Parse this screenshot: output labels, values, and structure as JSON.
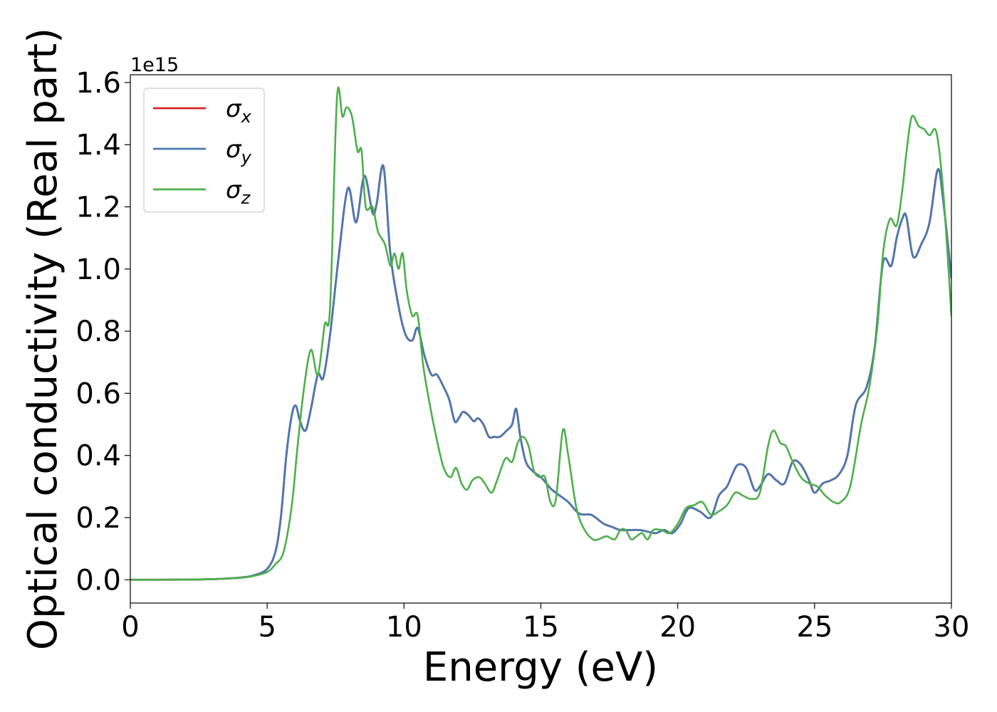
{
  "chart_data": {
    "type": "line",
    "title": "",
    "xlabel": "Energy (eV)",
    "ylabel": "Optical conductivity (Real part)",
    "y_offset_label": "1e15",
    "xlim": [
      0,
      30
    ],
    "ylim": [
      -0.075,
      1.625
    ],
    "x_ticks": [
      0,
      5,
      10,
      15,
      20,
      25,
      30
    ],
    "x_tick_labels": [
      "0",
      "5",
      "10",
      "15",
      "20",
      "25",
      "30"
    ],
    "y_ticks": [
      0.0,
      0.2,
      0.4,
      0.6,
      0.8,
      1.0,
      1.2,
      1.4,
      1.6
    ],
    "y_tick_labels": [
      "0.0",
      "0.2",
      "0.4",
      "0.6",
      "0.8",
      "1.0",
      "1.2",
      "1.4",
      "1.6"
    ],
    "grid": false,
    "legend_position": "top-left",
    "series": [
      {
        "name": "σx",
        "legend_main": "σ",
        "legend_sub": "x",
        "color": "#d62728",
        "x": [
          0,
          1,
          2,
          3,
          4,
          4.5,
          5,
          5.3,
          5.5,
          5.7,
          5.9,
          6.05,
          6.2,
          6.4,
          6.6,
          6.85,
          7.05,
          7.3,
          7.6,
          7.95,
          8.25,
          8.55,
          8.85,
          9.0,
          9.25,
          9.5,
          9.8,
          10.05,
          10.3,
          10.5,
          10.75,
          11.0,
          11.2,
          11.45,
          11.65,
          11.85,
          12.0,
          12.15,
          12.35,
          12.55,
          12.7,
          12.9,
          13.1,
          13.3,
          13.5,
          13.75,
          13.95,
          14.1,
          14.25,
          14.45,
          14.7,
          15.0,
          15.2,
          15.4,
          15.7,
          16.0,
          16.3,
          16.5,
          16.8,
          17.0,
          17.3,
          17.6,
          17.9,
          18.2,
          18.6,
          18.9,
          19.2,
          19.5,
          19.8,
          20.1,
          20.4,
          20.8,
          21.2,
          21.5,
          21.8,
          22.0,
          22.2,
          22.5,
          22.8,
          23.0,
          23.3,
          23.6,
          23.9,
          24.2,
          24.5,
          24.8,
          25.0,
          25.3,
          25.6,
          25.9,
          26.2,
          26.5,
          26.9,
          27.2,
          27.5,
          27.8,
          28.0,
          28.2,
          28.35,
          28.6,
          28.9,
          29.2,
          29.5,
          29.7,
          30.0
        ],
        "y": [
          0.0,
          0.0,
          0.0005,
          0.002,
          0.007,
          0.014,
          0.035,
          0.09,
          0.2,
          0.4,
          0.53,
          0.56,
          0.51,
          0.48,
          0.55,
          0.66,
          0.65,
          0.79,
          1.03,
          1.26,
          1.15,
          1.3,
          1.18,
          1.21,
          1.33,
          1.05,
          0.88,
          0.79,
          0.77,
          0.81,
          0.72,
          0.66,
          0.66,
          0.62,
          0.58,
          0.51,
          0.52,
          0.54,
          0.53,
          0.51,
          0.52,
          0.5,
          0.46,
          0.46,
          0.46,
          0.48,
          0.5,
          0.55,
          0.46,
          0.38,
          0.35,
          0.33,
          0.31,
          0.29,
          0.27,
          0.25,
          0.22,
          0.21,
          0.21,
          0.2,
          0.18,
          0.17,
          0.16,
          0.16,
          0.16,
          0.155,
          0.15,
          0.16,
          0.15,
          0.18,
          0.23,
          0.22,
          0.2,
          0.27,
          0.3,
          0.34,
          0.37,
          0.36,
          0.29,
          0.3,
          0.34,
          0.32,
          0.31,
          0.38,
          0.37,
          0.32,
          0.28,
          0.31,
          0.32,
          0.34,
          0.4,
          0.56,
          0.62,
          0.75,
          1.02,
          1.01,
          1.1,
          1.16,
          1.17,
          1.04,
          1.08,
          1.15,
          1.32,
          1.22,
          0.97
        ]
      },
      {
        "name": "σy",
        "legend_main": "σ",
        "legend_sub": "y",
        "color": "#4a78b0",
        "x": [
          0,
          1,
          2,
          3,
          4,
          4.5,
          5,
          5.3,
          5.5,
          5.7,
          5.9,
          6.05,
          6.2,
          6.4,
          6.6,
          6.85,
          7.05,
          7.3,
          7.6,
          7.95,
          8.25,
          8.55,
          8.85,
          9.0,
          9.25,
          9.5,
          9.8,
          10.05,
          10.3,
          10.5,
          10.75,
          11.0,
          11.2,
          11.45,
          11.65,
          11.85,
          12.0,
          12.15,
          12.35,
          12.55,
          12.7,
          12.9,
          13.1,
          13.3,
          13.5,
          13.75,
          13.95,
          14.1,
          14.25,
          14.45,
          14.7,
          15.0,
          15.2,
          15.4,
          15.7,
          16.0,
          16.3,
          16.5,
          16.8,
          17.0,
          17.3,
          17.6,
          17.9,
          18.2,
          18.6,
          18.9,
          19.2,
          19.5,
          19.8,
          20.1,
          20.4,
          20.8,
          21.2,
          21.5,
          21.8,
          22.0,
          22.2,
          22.5,
          22.8,
          23.0,
          23.3,
          23.6,
          23.9,
          24.2,
          24.5,
          24.8,
          25.0,
          25.3,
          25.6,
          25.9,
          26.2,
          26.5,
          26.9,
          27.2,
          27.5,
          27.8,
          28.0,
          28.2,
          28.35,
          28.6,
          28.9,
          29.2,
          29.5,
          29.7,
          30.0
        ],
        "y": [
          0.0,
          0.0,
          0.0005,
          0.002,
          0.007,
          0.014,
          0.035,
          0.09,
          0.2,
          0.4,
          0.53,
          0.56,
          0.51,
          0.48,
          0.55,
          0.66,
          0.65,
          0.79,
          1.03,
          1.26,
          1.15,
          1.3,
          1.18,
          1.21,
          1.33,
          1.05,
          0.88,
          0.79,
          0.77,
          0.81,
          0.72,
          0.66,
          0.66,
          0.62,
          0.58,
          0.51,
          0.52,
          0.54,
          0.53,
          0.51,
          0.52,
          0.5,
          0.46,
          0.46,
          0.46,
          0.48,
          0.5,
          0.55,
          0.46,
          0.38,
          0.35,
          0.33,
          0.31,
          0.29,
          0.27,
          0.25,
          0.22,
          0.21,
          0.21,
          0.2,
          0.18,
          0.17,
          0.16,
          0.16,
          0.16,
          0.155,
          0.15,
          0.16,
          0.15,
          0.18,
          0.23,
          0.22,
          0.2,
          0.27,
          0.3,
          0.34,
          0.37,
          0.36,
          0.29,
          0.3,
          0.34,
          0.32,
          0.31,
          0.38,
          0.37,
          0.32,
          0.28,
          0.31,
          0.32,
          0.34,
          0.4,
          0.56,
          0.62,
          0.75,
          1.02,
          1.01,
          1.1,
          1.16,
          1.17,
          1.04,
          1.08,
          1.15,
          1.32,
          1.22,
          0.97
        ]
      },
      {
        "name": "σz",
        "legend_main": "σ",
        "legend_sub": "z",
        "color": "#4daf4a",
        "x": [
          0,
          1,
          2,
          3,
          4,
          4.5,
          5,
          5.3,
          5.6,
          5.9,
          6.1,
          6.35,
          6.6,
          6.85,
          7.1,
          7.3,
          7.55,
          7.75,
          7.9,
          8.1,
          8.3,
          8.45,
          8.6,
          8.85,
          9.05,
          9.3,
          9.5,
          9.65,
          9.8,
          9.95,
          10.1,
          10.3,
          10.5,
          10.7,
          10.95,
          11.2,
          11.45,
          11.7,
          11.9,
          12.1,
          12.3,
          12.5,
          12.75,
          12.95,
          13.2,
          13.4,
          13.7,
          13.95,
          14.15,
          14.35,
          14.55,
          14.75,
          14.95,
          15.15,
          15.35,
          15.55,
          15.8,
          16.0,
          16.3,
          16.6,
          16.9,
          17.1,
          17.4,
          17.7,
          17.9,
          18.1,
          18.3,
          18.5,
          18.7,
          18.9,
          19.1,
          19.4,
          19.7,
          20.0,
          20.3,
          20.6,
          20.9,
          21.2,
          21.5,
          21.8,
          22.1,
          22.4,
          22.7,
          23.0,
          23.3,
          23.5,
          23.75,
          23.95,
          24.2,
          24.5,
          24.8,
          25.1,
          25.4,
          25.7,
          25.95,
          26.3,
          26.7,
          27.0,
          27.3,
          27.5,
          27.75,
          28.0,
          28.2,
          28.35,
          28.55,
          28.8,
          29.0,
          29.2,
          29.45,
          29.7,
          30.0
        ],
        "y": [
          0.0,
          0.0,
          0.0005,
          0.002,
          0.006,
          0.012,
          0.025,
          0.05,
          0.09,
          0.24,
          0.42,
          0.62,
          0.74,
          0.66,
          0.82,
          0.88,
          1.55,
          1.49,
          1.52,
          1.49,
          1.38,
          1.38,
          1.2,
          1.2,
          1.12,
          1.08,
          1.01,
          1.05,
          1.0,
          1.05,
          0.93,
          0.85,
          0.85,
          0.69,
          0.56,
          0.45,
          0.36,
          0.33,
          0.36,
          0.31,
          0.29,
          0.32,
          0.33,
          0.31,
          0.28,
          0.32,
          0.39,
          0.38,
          0.44,
          0.46,
          0.43,
          0.35,
          0.33,
          0.33,
          0.25,
          0.26,
          0.48,
          0.4,
          0.23,
          0.16,
          0.13,
          0.13,
          0.14,
          0.13,
          0.16,
          0.16,
          0.13,
          0.14,
          0.15,
          0.13,
          0.16,
          0.16,
          0.15,
          0.18,
          0.23,
          0.24,
          0.25,
          0.21,
          0.22,
          0.24,
          0.28,
          0.27,
          0.26,
          0.28,
          0.43,
          0.48,
          0.44,
          0.43,
          0.38,
          0.33,
          0.31,
          0.3,
          0.27,
          0.25,
          0.25,
          0.3,
          0.5,
          0.62,
          0.82,
          1.05,
          1.16,
          1.14,
          1.25,
          1.37,
          1.49,
          1.46,
          1.45,
          1.43,
          1.44,
          1.25,
          0.85
        ]
      }
    ]
  }
}
